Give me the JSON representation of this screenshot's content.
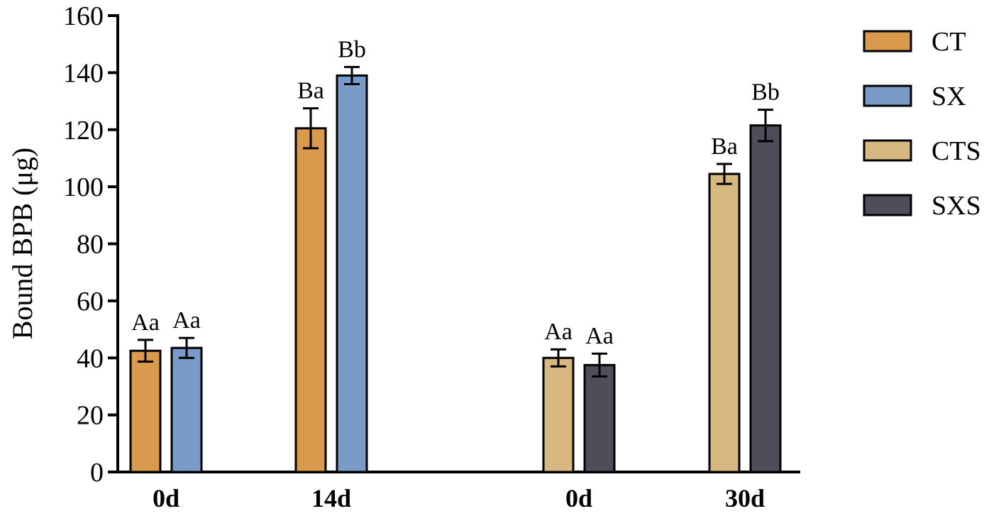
{
  "chart_data": {
    "type": "bar",
    "ylabel": "Bound BPB (μg)",
    "xlabel": "",
    "ylim": [
      0,
      160
    ],
    "yticks": [
      0,
      20,
      40,
      60,
      80,
      100,
      120,
      140,
      160
    ],
    "groups": [
      "0d",
      "14d",
      "0d",
      "30d"
    ],
    "series": [
      {
        "name": "CT",
        "color": "#D99A4E"
      },
      {
        "name": "SX",
        "color": "#7A9AC8"
      },
      {
        "name": "CTS",
        "color": "#D6B880"
      },
      {
        "name": "SXS",
        "color": "#4F4D5A"
      }
    ],
    "bars": [
      {
        "group": 0,
        "series": 0,
        "value": 42.5,
        "error": 3.8,
        "label": "Aa"
      },
      {
        "group": 0,
        "series": 1,
        "value": 43.5,
        "error": 3.5,
        "label": "Aa"
      },
      {
        "group": 1,
        "series": 0,
        "value": 120.5,
        "error": 7.0,
        "label": "Ba"
      },
      {
        "group": 1,
        "series": 1,
        "value": 139.0,
        "error": 3.0,
        "label": "Bb"
      },
      {
        "group": 2,
        "series": 2,
        "value": 40.0,
        "error": 3.0,
        "label": "Aa"
      },
      {
        "group": 2,
        "series": 3,
        "value": 37.5,
        "error": 4.0,
        "label": "Aa"
      },
      {
        "group": 3,
        "series": 2,
        "value": 104.5,
        "error": 3.5,
        "label": "Ba"
      },
      {
        "group": 3,
        "series": 3,
        "value": 121.5,
        "error": 5.5,
        "label": "Bb"
      }
    ],
    "legend": "right"
  }
}
